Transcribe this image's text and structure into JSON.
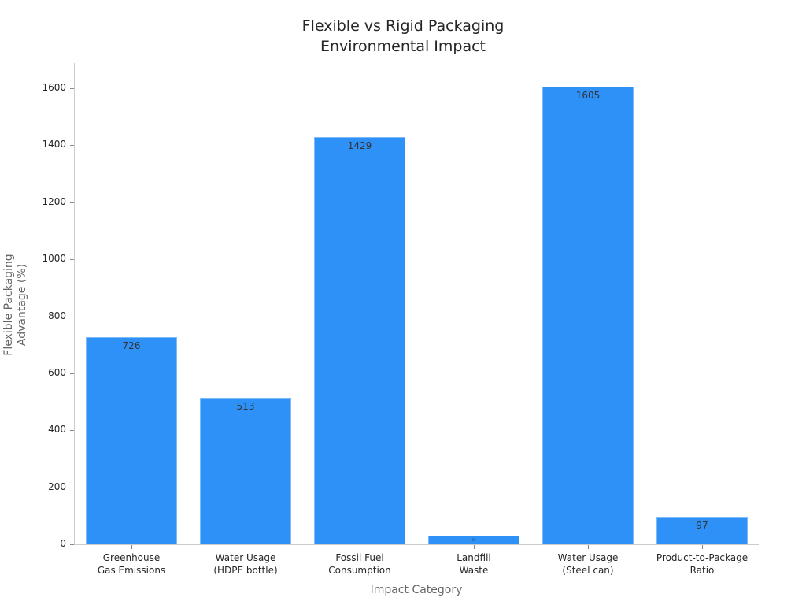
{
  "chart_data": {
    "type": "bar",
    "title": "Flexible vs Rigid Packaging\nEnvironmental Impact",
    "title_lines": [
      "Flexible vs Rigid Packaging",
      "Environmental Impact"
    ],
    "xlabel": "Impact Category",
    "ylabel": "Flexible Packaging\nAdvantage (%)",
    "categories": [
      "Greenhouse\nGas Emissions",
      "Water Usage\n(HDPE bottle)",
      "Fossil Fuel\nConsumption",
      "Landfill\nWaste",
      "Water Usage\n(Steel can)",
      "Product-to-Package\nRatio"
    ],
    "values": [
      726,
      513,
      1429,
      31,
      1605,
      97
    ],
    "value_labels": [
      "726",
      "513",
      "1429",
      "31",
      "1605",
      "97"
    ],
    "yticks": [
      0,
      200,
      400,
      600,
      800,
      1000,
      1200,
      1400,
      1600
    ],
    "ylim": [
      0,
      1690
    ],
    "grid": false,
    "bar_color": "#2e91f7",
    "legend": null
  }
}
